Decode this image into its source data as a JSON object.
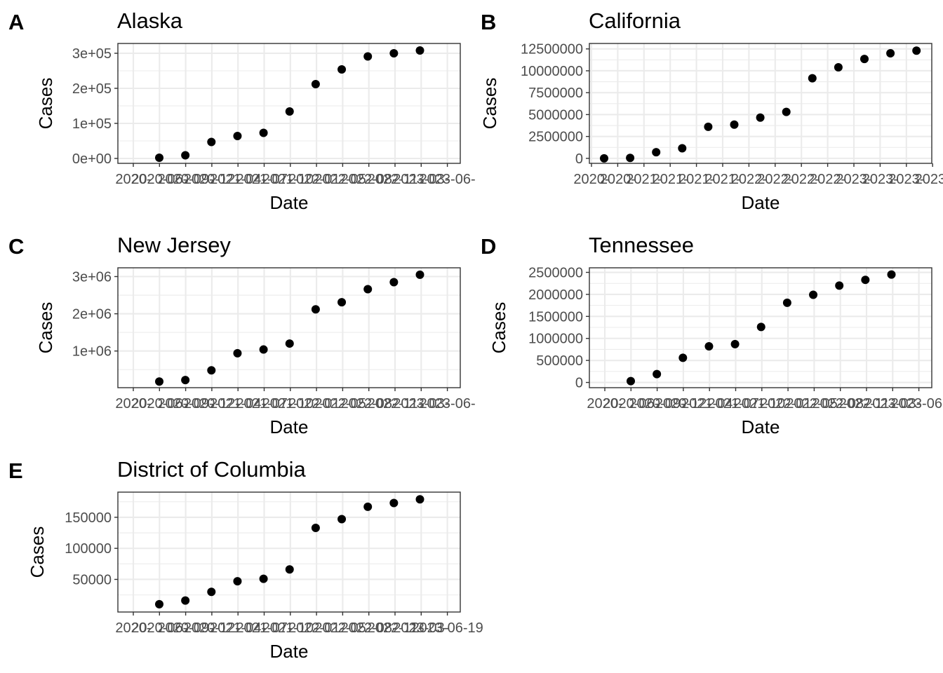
{
  "chart_data": [
    {
      "tag": "A",
      "type": "scatter",
      "title": "Alaska",
      "xlabel": "Date",
      "ylabel": "Cases",
      "grid": true,
      "x_ticks": [
        "2020-",
        "2020-06-",
        "2020-09-",
        "2020-12-",
        "2021-04-",
        "2021-07-",
        "2021-10-",
        "2022-01-",
        "2022-05-",
        "2022-08-",
        "2022-11-",
        "2023-03-",
        "2023-06-"
      ],
      "y_ticks": [
        0,
        100000,
        200000,
        300000
      ],
      "y_tick_labels": [
        "0e+00",
        "1e+05",
        "2e+05",
        "3e+05"
      ],
      "ylim": [
        -6000,
        320000
      ],
      "x": [
        "2020-06",
        "2020-09",
        "2020-12",
        "2021-04",
        "2021-07",
        "2021-10",
        "2022-01",
        "2022-05",
        "2022-08",
        "2022-11",
        "2023-03"
      ],
      "y": [
        2000,
        9000,
        47000,
        64000,
        73000,
        134000,
        212000,
        254000,
        291000,
        300000,
        308000
      ]
    },
    {
      "tag": "B",
      "type": "scatter",
      "title": "California",
      "xlabel": "Date",
      "ylabel": "Cases",
      "grid": true,
      "x_ticks": [
        "2020-",
        "2020-",
        "2021-",
        "2021-",
        "2021-",
        "2021-",
        "2022-",
        "2022-",
        "2022-",
        "2022-",
        "2023-",
        "2023-",
        "2023-",
        "2023-"
      ],
      "y_ticks": [
        0,
        2500000,
        5000000,
        7500000,
        10000000,
        12500000
      ],
      "y_tick_labels": [
        "0",
        "2500000",
        "5000000",
        "7500000",
        "10000000",
        "12500000"
      ],
      "ylim": [
        -250000,
        12800000
      ],
      "x": [
        "2020-12",
        "2021-03",
        "2021-06",
        "2021-09",
        "2021-12",
        "2022-03",
        "2022-06",
        "2022-09",
        "2022-12",
        "2023-03",
        "2023-06",
        "2023-09",
        "2023-12"
      ],
      "y": [
        0,
        50000,
        700000,
        1150000,
        3600000,
        3850000,
        4650000,
        5300000,
        9150000,
        10400000,
        11350000,
        12000000,
        12300000
      ]
    },
    {
      "tag": "C",
      "type": "scatter",
      "title": "New Jersey",
      "xlabel": "Date",
      "ylabel": "Cases",
      "grid": true,
      "x_ticks": [
        "2020-",
        "2020-06-",
        "2020-09-",
        "2020-12-",
        "2021-04-",
        "2021-07-",
        "2021-10-",
        "2022-01-",
        "2022-05-",
        "2022-08-",
        "2022-11-",
        "2023-03-",
        "2023-06-"
      ],
      "y_ticks": [
        1000000,
        2000000,
        3000000
      ],
      "y_tick_labels": [
        "1e+06",
        "2e+06",
        "3e+06"
      ],
      "ylim": [
        90000,
        3160000
      ],
      "x": [
        "2020-06",
        "2020-09",
        "2020-12",
        "2021-04",
        "2021-07",
        "2021-10",
        "2022-01",
        "2022-05",
        "2022-08",
        "2022-11",
        "2023-03"
      ],
      "y": [
        180000,
        220000,
        480000,
        940000,
        1040000,
        1200000,
        2120000,
        2310000,
        2660000,
        2850000,
        3050000
      ]
    },
    {
      "tag": "D",
      "type": "scatter",
      "title": "Tennessee",
      "xlabel": "Date",
      "ylabel": "Cases",
      "grid": true,
      "x_ticks": [
        "2020-",
        "2020-06-",
        "2020-09-",
        "2020-12-",
        "2021-04-",
        "2021-07-",
        "2021-10-",
        "2022-01-",
        "2022-05-",
        "2022-08-",
        "2022-11-",
        "2023-03-",
        "2023-06-"
      ],
      "y_ticks": [
        0,
        500000,
        1000000,
        1500000,
        2000000,
        2500000
      ],
      "y_tick_labels": [
        "0",
        "500000",
        "1000000",
        "1500000",
        "2000000",
        "2500000"
      ],
      "ylim": [
        -55000,
        2540000
      ],
      "x": [
        "2020-06",
        "2020-09",
        "2020-12",
        "2021-04",
        "2021-07",
        "2021-10",
        "2022-01",
        "2022-05",
        "2022-08",
        "2022-11",
        "2023-03"
      ],
      "y": [
        30000,
        190000,
        560000,
        820000,
        870000,
        1260000,
        1810000,
        1990000,
        2200000,
        2330000,
        2450000
      ]
    },
    {
      "tag": "E",
      "type": "scatter",
      "title": "District of Columbia",
      "xlabel": "Date",
      "ylabel": "Cases",
      "grid": true,
      "x_ticks": [
        "2020-",
        "2020-06-",
        "2020-09-",
        "2020-12-",
        "2021-04-",
        "2021-07-",
        "2021-10-",
        "2022-01-",
        "2022-05-",
        "2022-08-",
        "2022-11-",
        "2023-03-",
        "2023-06-19"
      ],
      "y_ticks": [
        50000,
        100000,
        150000
      ],
      "y_tick_labels": [
        "50000",
        "100000",
        "150000"
      ],
      "ylim": [
        2000,
        186000
      ],
      "x": [
        "2020-06",
        "2020-09",
        "2020-12",
        "2021-04",
        "2021-07",
        "2021-10",
        "2022-01",
        "2022-05",
        "2022-08",
        "2022-11",
        "2023-03"
      ],
      "y": [
        10000,
        16000,
        30000,
        47000,
        51000,
        66000,
        133000,
        147000,
        167000,
        173000,
        179000
      ]
    }
  ]
}
